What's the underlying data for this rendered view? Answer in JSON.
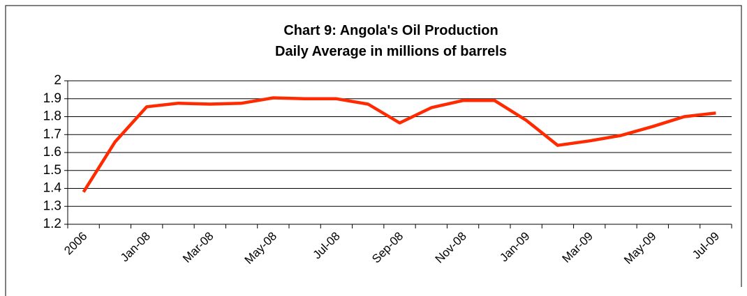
{
  "chart_data": {
    "type": "line",
    "title": [
      "Chart 9: Angola's Oil Production",
      "Daily Average in millions of barrels"
    ],
    "categories": [
      "2006",
      null,
      "Jan-08",
      null,
      "Mar-08",
      null,
      "May-08",
      null,
      "Jul-08",
      null,
      "Sep-08",
      null,
      "Nov-08",
      null,
      "Jan-09",
      null,
      "Mar-09",
      null,
      "May-09",
      null,
      "Jul-09"
    ],
    "series": [
      {
        "color": "#ff2a00",
        "values": [
          1.38,
          1.66,
          1.855,
          1.875,
          1.87,
          1.875,
          1.905,
          1.9,
          1.9,
          1.87,
          1.765,
          1.85,
          1.89,
          1.89,
          1.78,
          1.64,
          1.665,
          1.695,
          1.745,
          1.8,
          1.82
        ]
      }
    ],
    "ylim": [
      1.2,
      2
    ],
    "yticks": [
      1.2,
      1.3,
      1.4,
      1.5,
      1.6,
      1.7,
      1.8,
      1.9,
      2
    ],
    "grid": true
  }
}
